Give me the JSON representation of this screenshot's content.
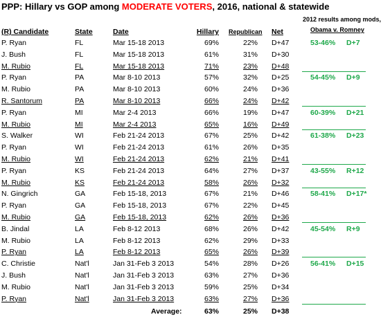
{
  "title": {
    "prefix": "PPP: Hillary vs GOP among ",
    "highlight": "MODERATE VOTERS",
    "suffix": ", 2016, national & statewide"
  },
  "results_header": {
    "line1": "2012 results among mods,",
    "line2": "Obama v. Romney"
  },
  "columns": [
    "(R) Candidate",
    "State",
    "Date",
    "Hillary",
    "Republican",
    "Net"
  ],
  "rows": [
    {
      "candidate": "P. Ryan",
      "state": "FL",
      "date": "Mar 15-18 2013",
      "hillary": "69%",
      "republican": "22%",
      "net": "D+47",
      "result": "53-46%",
      "margin": "D+7",
      "underline": false
    },
    {
      "candidate": "J. Bush",
      "state": "FL",
      "date": "Mar 15-18 2013",
      "hillary": "61%",
      "republican": "31%",
      "net": "D+30",
      "result": "",
      "margin": "",
      "underline": false
    },
    {
      "candidate": "M. Rubio",
      "state": "FL",
      "date": "Mar 15-18 2013",
      "hillary": "71%",
      "republican": "23%",
      "net": "D+48",
      "result": "",
      "margin": "",
      "underline": true
    },
    {
      "candidate": "P. Ryan",
      "state": "PA",
      "date": "Mar 8-10 2013",
      "hillary": "57%",
      "republican": "32%",
      "net": "D+25",
      "result": "54-45%",
      "margin": "D+9",
      "underline": false
    },
    {
      "candidate": "M. Rubio",
      "state": "PA",
      "date": "Mar 8-10 2013",
      "hillary": "60%",
      "republican": "24%",
      "net": "D+36",
      "result": "",
      "margin": "",
      "underline": false
    },
    {
      "candidate": "R. Santorum",
      "state": "PA",
      "date": "Mar 8-10 2013",
      "hillary": "66%",
      "republican": "24%",
      "net": "D+42",
      "result": "",
      "margin": "",
      "underline": true
    },
    {
      "candidate": "P. Ryan",
      "state": "MI",
      "date": "Mar 2-4 2013",
      "hillary": "66%",
      "republican": "19%",
      "net": "D+47",
      "result": "60-39%",
      "margin": "D+21",
      "underline": false
    },
    {
      "candidate": "M. Rubio",
      "state": "MI",
      "date": "Mar 2-4 2013",
      "hillary": "65%",
      "republican": "16%",
      "net": "D+49",
      "result": "",
      "margin": "",
      "underline": true
    },
    {
      "candidate": "S. Walker",
      "state": "WI",
      "date": "Feb 21-24 2013",
      "hillary": "67%",
      "republican": "25%",
      "net": "D+42",
      "result": "61-38%",
      "margin": "D+23",
      "underline": false
    },
    {
      "candidate": "P. Ryan",
      "state": "WI",
      "date": "Feb 21-24 2013",
      "hillary": "61%",
      "republican": "26%",
      "net": "D+35",
      "result": "",
      "margin": "",
      "underline": false
    },
    {
      "candidate": "M. Rubio",
      "state": "WI",
      "date": "Feb 21-24 2013",
      "hillary": "62%",
      "republican": "21%",
      "net": "D+41",
      "result": "",
      "margin": "",
      "underline": true
    },
    {
      "candidate": "P. Ryan",
      "state": "KS",
      "date": "Feb 21-24 2013",
      "hillary": "64%",
      "republican": "27%",
      "net": "D+37",
      "result": "43-55%",
      "margin": "R+12",
      "underline": false
    },
    {
      "candidate": "M. Rubio",
      "state": "KS",
      "date": "Feb 21-24 2013",
      "hillary": "58%",
      "republican": "26%",
      "net": "D+32",
      "result": "",
      "margin": "",
      "underline": true
    },
    {
      "candidate": "N. Gingrich",
      "state": "GA",
      "date": "Feb 15-18, 2013",
      "hillary": "67%",
      "republican": "21%",
      "net": "D+46",
      "result": "58-41%",
      "margin": "D+17*",
      "underline": false
    },
    {
      "candidate": "P. Ryan",
      "state": "GA",
      "date": "Feb 15-18, 2013",
      "hillary": "67%",
      "republican": "22%",
      "net": "D+45",
      "result": "",
      "margin": "",
      "underline": false
    },
    {
      "candidate": "M. Rubio",
      "state": "GA",
      "date": "Feb 15-18, 2013",
      "hillary": "62%",
      "republican": "26%",
      "net": "D+36",
      "result": "",
      "margin": "",
      "underline": true
    },
    {
      "candidate": "B. Jindal",
      "state": "LA",
      "date": "Feb 8-12 2013",
      "hillary": "68%",
      "republican": "26%",
      "net": "D+42",
      "result": "45-54%",
      "margin": "R+9",
      "underline": false
    },
    {
      "candidate": "M. Rubio",
      "state": "LA",
      "date": "Feb 8-12 2013",
      "hillary": "62%",
      "republican": "29%",
      "net": "D+33",
      "result": "",
      "margin": "",
      "underline": false
    },
    {
      "candidate": "P. Ryan",
      "state": "LA",
      "date": "Feb 8-12 2013",
      "hillary": "65%",
      "republican": "26%",
      "net": "D+39",
      "result": "",
      "margin": "",
      "underline": true
    },
    {
      "candidate": "C. Christie",
      "state": "Nat'l",
      "date": "Jan 31-Feb 3 2013",
      "hillary": "54%",
      "republican": "28%",
      "net": "D+26",
      "result": "56-41%",
      "margin": "D+15",
      "underline": false
    },
    {
      "candidate": "J. Bush",
      "state": "Nat'l",
      "date": "Jan 31-Feb 3 2013",
      "hillary": "63%",
      "republican": "27%",
      "net": "D+36",
      "result": "",
      "margin": "",
      "underline": false
    },
    {
      "candidate": "M. Rubio",
      "state": "Nat'l",
      "date": "Jan 31-Feb 3 2013",
      "hillary": "59%",
      "republican": "25%",
      "net": "D+34",
      "result": "",
      "margin": "",
      "underline": false
    },
    {
      "candidate": "P. Ryan",
      "state": "Nat'l",
      "date": "Jan 31-Feb 3 2013",
      "hillary": "63%",
      "republican": "27%",
      "net": "D+36",
      "result": "",
      "margin": "",
      "underline": true
    }
  ],
  "average": {
    "label": "Average:",
    "hillary": "63%",
    "republican": "25%",
    "net": "D+38"
  },
  "colors": {
    "highlight": "#ff0000",
    "results": "#1ea84a"
  }
}
